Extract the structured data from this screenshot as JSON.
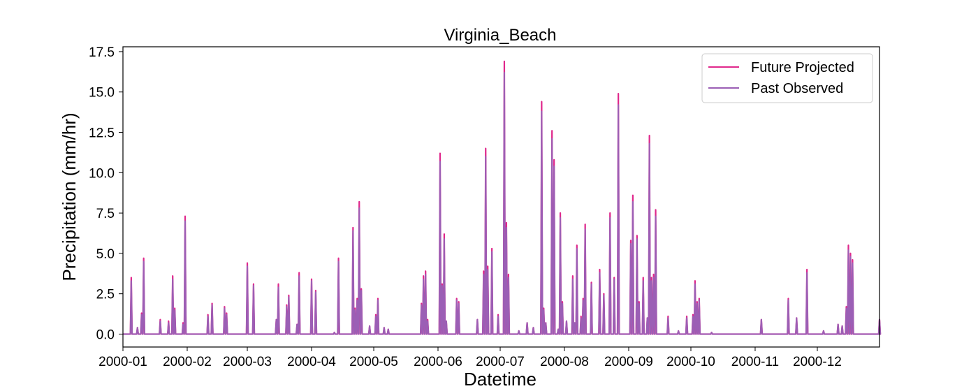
{
  "chart_data": {
    "type": "line",
    "title": "Virginia_Beach",
    "xlabel": "Datetime",
    "ylabel": "Precipitation (mm/hr)",
    "xlim": [
      "2000-01-01",
      "2000-12-31"
    ],
    "ylim": [
      -0.8,
      17.8
    ],
    "x_ticks": [
      "2000-01",
      "2000-02",
      "2000-03",
      "2000-04",
      "2000-05",
      "2000-06",
      "2000-07",
      "2000-08",
      "2000-09",
      "2000-10",
      "2000-11",
      "2000-12"
    ],
    "y_ticks": [
      "0.0",
      "2.5",
      "5.0",
      "7.5",
      "10.0",
      "12.5",
      "15.0",
      "17.5"
    ],
    "legend_position": "top-right",
    "grid": false,
    "series": [
      {
        "name": "Future Projected",
        "color": "#e0288c",
        "points": [
          [
            "2000-01-05",
            3.5
          ],
          [
            "2000-01-08",
            0.4
          ],
          [
            "2000-01-10",
            1.3
          ],
          [
            "2000-01-11",
            4.7
          ],
          [
            "2000-01-19",
            0.9
          ],
          [
            "2000-01-23",
            0.8
          ],
          [
            "2000-01-25",
            3.6
          ],
          [
            "2000-01-26",
            1.6
          ],
          [
            "2000-01-30",
            0.7
          ],
          [
            "2000-01-31",
            7.3
          ],
          [
            "2000-02-11",
            1.2
          ],
          [
            "2000-02-13",
            1.9
          ],
          [
            "2000-02-19",
            1.7
          ],
          [
            "2000-02-20",
            1.3
          ],
          [
            "2000-03-01",
            4.4
          ],
          [
            "2000-03-04",
            3.1
          ],
          [
            "2000-03-15",
            0.9
          ],
          [
            "2000-03-16",
            3.1
          ],
          [
            "2000-03-20",
            1.8
          ],
          [
            "2000-03-21",
            2.4
          ],
          [
            "2000-03-25",
            0.6
          ],
          [
            "2000-03-26",
            3.8
          ],
          [
            "2000-04-01",
            3.4
          ],
          [
            "2000-04-03",
            2.7
          ],
          [
            "2000-04-12",
            0.1
          ],
          [
            "2000-04-14",
            4.7
          ],
          [
            "2000-04-21",
            6.6
          ],
          [
            "2000-04-22",
            1.6
          ],
          [
            "2000-04-23",
            2.2
          ],
          [
            "2000-04-24",
            8.2
          ],
          [
            "2000-04-25",
            2.8
          ],
          [
            "2000-04-29",
            0.5
          ],
          [
            "2000-05-02",
            1.2
          ],
          [
            "2000-05-03",
            2.2
          ],
          [
            "2000-05-06",
            0.4
          ],
          [
            "2000-05-08",
            0.3
          ],
          [
            "2000-05-24",
            1.9
          ],
          [
            "2000-05-25",
            3.6
          ],
          [
            "2000-05-26",
            3.9
          ],
          [
            "2000-05-27",
            0.9
          ],
          [
            "2000-06-02",
            11.2
          ],
          [
            "2000-06-03",
            3.1
          ],
          [
            "2000-06-04",
            6.2
          ],
          [
            "2000-06-05",
            0.8
          ],
          [
            "2000-06-10",
            2.2
          ],
          [
            "2000-06-11",
            2.0
          ],
          [
            "2000-06-20",
            0.9
          ],
          [
            "2000-06-23",
            3.9
          ],
          [
            "2000-06-24",
            11.5
          ],
          [
            "2000-06-25",
            4.2
          ],
          [
            "2000-06-27",
            5.3
          ],
          [
            "2000-06-30",
            1.2
          ],
          [
            "2000-07-03",
            16.9
          ],
          [
            "2000-07-04",
            6.9
          ],
          [
            "2000-07-05",
            3.7
          ],
          [
            "2000-07-10",
            0.2
          ],
          [
            "2000-07-14",
            0.7
          ],
          [
            "2000-07-17",
            0.4
          ],
          [
            "2000-07-21",
            14.4
          ],
          [
            "2000-07-22",
            1.6
          ],
          [
            "2000-07-23",
            0.7
          ],
          [
            "2000-07-26",
            12.6
          ],
          [
            "2000-07-27",
            10.8
          ],
          [
            "2000-07-29",
            0.3
          ],
          [
            "2000-07-30",
            7.5
          ],
          [
            "2000-07-31",
            2.0
          ],
          [
            "2000-08-02",
            0.8
          ],
          [
            "2000-08-05",
            3.6
          ],
          [
            "2000-08-06",
            0.7
          ],
          [
            "2000-08-07",
            5.5
          ],
          [
            "2000-08-09",
            1.1
          ],
          [
            "2000-08-10",
            2.2
          ],
          [
            "2000-08-11",
            6.8
          ],
          [
            "2000-08-14",
            3.2
          ],
          [
            "2000-08-18",
            4.0
          ],
          [
            "2000-08-20",
            2.5
          ],
          [
            "2000-08-23",
            7.5
          ],
          [
            "2000-08-25",
            3.5
          ],
          [
            "2000-08-27",
            14.9
          ],
          [
            "2000-09-02",
            5.8
          ],
          [
            "2000-09-03",
            8.6
          ],
          [
            "2000-09-05",
            6.1
          ],
          [
            "2000-09-06",
            2.0
          ],
          [
            "2000-09-08",
            3.5
          ],
          [
            "2000-09-10",
            1.0
          ],
          [
            "2000-09-11",
            12.3
          ],
          [
            "2000-09-12",
            3.5
          ],
          [
            "2000-09-13",
            3.7
          ],
          [
            "2000-09-14",
            7.7
          ],
          [
            "2000-09-20",
            1.1
          ],
          [
            "2000-09-25",
            0.2
          ],
          [
            "2000-09-29",
            1.1
          ],
          [
            "2000-10-02",
            1.2
          ],
          [
            "2000-10-03",
            3.3
          ],
          [
            "2000-10-04",
            2.0
          ],
          [
            "2000-10-05",
            2.2
          ],
          [
            "2000-10-11",
            0.1
          ],
          [
            "2000-11-04",
            0.9
          ],
          [
            "2000-11-17",
            2.2
          ],
          [
            "2000-11-21",
            1.0
          ],
          [
            "2000-11-26",
            4.0
          ],
          [
            "2000-12-04",
            0.2
          ],
          [
            "2000-12-11",
            0.6
          ],
          [
            "2000-12-13",
            0.5
          ],
          [
            "2000-12-15",
            1.7
          ],
          [
            "2000-12-16",
            5.5
          ],
          [
            "2000-12-17",
            5.0
          ],
          [
            "2000-12-18",
            4.6
          ],
          [
            "2000-12-31",
            0.9
          ]
        ]
      },
      {
        "name": "Past Observed",
        "color": "#9b5fb5",
        "points": [
          [
            "2000-01-05",
            3.3
          ],
          [
            "2000-01-08",
            0.4
          ],
          [
            "2000-01-10",
            1.2
          ],
          [
            "2000-01-11",
            4.5
          ],
          [
            "2000-01-19",
            0.8
          ],
          [
            "2000-01-23",
            0.7
          ],
          [
            "2000-01-25",
            3.4
          ],
          [
            "2000-01-26",
            1.5
          ],
          [
            "2000-01-30",
            0.6
          ],
          [
            "2000-01-31",
            7.0
          ],
          [
            "2000-02-11",
            1.1
          ],
          [
            "2000-02-13",
            1.8
          ],
          [
            "2000-02-19",
            1.6
          ],
          [
            "2000-02-20",
            1.2
          ],
          [
            "2000-03-01",
            4.2
          ],
          [
            "2000-03-04",
            3.0
          ],
          [
            "2000-03-15",
            0.9
          ],
          [
            "2000-03-16",
            2.9
          ],
          [
            "2000-03-20",
            1.7
          ],
          [
            "2000-03-21",
            2.3
          ],
          [
            "2000-03-25",
            0.6
          ],
          [
            "2000-03-26",
            3.6
          ],
          [
            "2000-04-01",
            3.3
          ],
          [
            "2000-04-03",
            2.6
          ],
          [
            "2000-04-12",
            0.1
          ],
          [
            "2000-04-14",
            4.5
          ],
          [
            "2000-04-21",
            6.4
          ],
          [
            "2000-04-22",
            1.5
          ],
          [
            "2000-04-23",
            2.1
          ],
          [
            "2000-04-24",
            7.8
          ],
          [
            "2000-04-25",
            2.7
          ],
          [
            "2000-04-29",
            0.5
          ],
          [
            "2000-05-02",
            1.1
          ],
          [
            "2000-05-03",
            2.1
          ],
          [
            "2000-05-06",
            0.4
          ],
          [
            "2000-05-08",
            0.3
          ],
          [
            "2000-05-24",
            1.8
          ],
          [
            "2000-05-25",
            3.4
          ],
          [
            "2000-05-26",
            3.7
          ],
          [
            "2000-05-27",
            0.8
          ],
          [
            "2000-06-02",
            10.7
          ],
          [
            "2000-06-03",
            3.0
          ],
          [
            "2000-06-04",
            5.9
          ],
          [
            "2000-06-05",
            0.8
          ],
          [
            "2000-06-10",
            2.1
          ],
          [
            "2000-06-11",
            1.9
          ],
          [
            "2000-06-20",
            0.9
          ],
          [
            "2000-06-23",
            3.7
          ],
          [
            "2000-06-24",
            11.0
          ],
          [
            "2000-06-25",
            4.0
          ],
          [
            "2000-06-27",
            5.1
          ],
          [
            "2000-06-30",
            1.1
          ],
          [
            "2000-07-03",
            16.2
          ],
          [
            "2000-07-04",
            6.6
          ],
          [
            "2000-07-05",
            3.5
          ],
          [
            "2000-07-10",
            0.2
          ],
          [
            "2000-07-14",
            0.7
          ],
          [
            "2000-07-17",
            0.4
          ],
          [
            "2000-07-21",
            13.8
          ],
          [
            "2000-07-22",
            1.5
          ],
          [
            "2000-07-23",
            0.7
          ],
          [
            "2000-07-26",
            12.1
          ],
          [
            "2000-07-27",
            10.4
          ],
          [
            "2000-07-29",
            0.3
          ],
          [
            "2000-07-30",
            7.2
          ],
          [
            "2000-07-31",
            1.9
          ],
          [
            "2000-08-02",
            0.8
          ],
          [
            "2000-08-05",
            3.4
          ],
          [
            "2000-08-06",
            0.7
          ],
          [
            "2000-08-07",
            5.3
          ],
          [
            "2000-08-09",
            1.0
          ],
          [
            "2000-08-10",
            2.1
          ],
          [
            "2000-08-11",
            6.5
          ],
          [
            "2000-08-14",
            3.1
          ],
          [
            "2000-08-18",
            3.8
          ],
          [
            "2000-08-20",
            2.4
          ],
          [
            "2000-08-23",
            7.2
          ],
          [
            "2000-08-25",
            3.4
          ],
          [
            "2000-08-27",
            14.2
          ],
          [
            "2000-09-02",
            5.6
          ],
          [
            "2000-09-03",
            8.2
          ],
          [
            "2000-09-05",
            5.9
          ],
          [
            "2000-09-06",
            1.9
          ],
          [
            "2000-09-08",
            3.3
          ],
          [
            "2000-09-10",
            1.0
          ],
          [
            "2000-09-11",
            11.8
          ],
          [
            "2000-09-12",
            3.3
          ],
          [
            "2000-09-13",
            3.5
          ],
          [
            "2000-09-14",
            7.3
          ],
          [
            "2000-09-20",
            1.0
          ],
          [
            "2000-09-25",
            0.2
          ],
          [
            "2000-09-29",
            1.0
          ],
          [
            "2000-10-02",
            1.1
          ],
          [
            "2000-10-03",
            3.1
          ],
          [
            "2000-10-04",
            1.9
          ],
          [
            "2000-10-05",
            2.1
          ],
          [
            "2000-10-11",
            0.1
          ],
          [
            "2000-11-04",
            0.9
          ],
          [
            "2000-11-17",
            2.1
          ],
          [
            "2000-11-21",
            1.0
          ],
          [
            "2000-11-26",
            3.8
          ],
          [
            "2000-12-04",
            0.2
          ],
          [
            "2000-12-11",
            0.6
          ],
          [
            "2000-12-13",
            0.5
          ],
          [
            "2000-12-15",
            1.6
          ],
          [
            "2000-12-16",
            5.2
          ],
          [
            "2000-12-17",
            4.8
          ],
          [
            "2000-12-18",
            4.4
          ],
          [
            "2000-12-31",
            0.9
          ]
        ]
      }
    ]
  }
}
